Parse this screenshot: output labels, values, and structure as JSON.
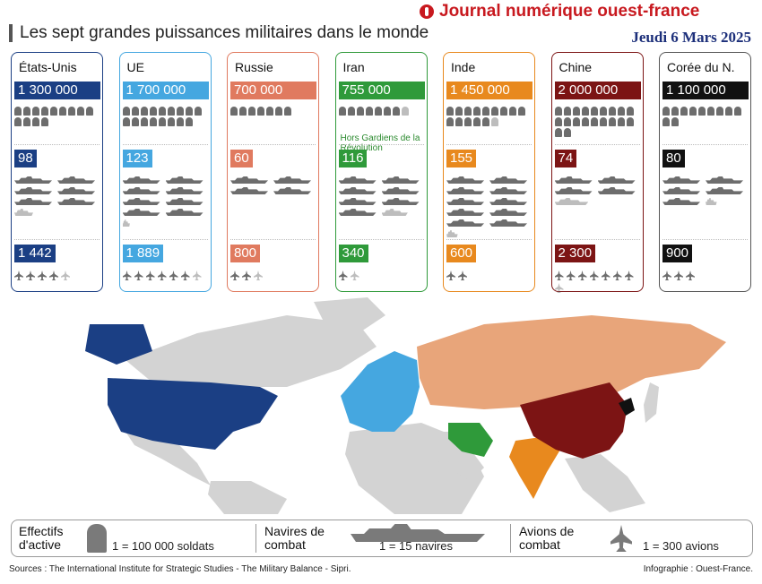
{
  "header": {
    "brand": "Journal numérique ouest-france",
    "date": "Jeudi 6 Mars 2025",
    "title": "Les sept grandes puissances militaires dans le monde"
  },
  "countries": [
    {
      "name": "États-Unis",
      "troops": "1 300 000",
      "ships": "98",
      "aircraft": "1 442",
      "color": "#1b3f84",
      "border": "#1b3f84",
      "soldier_icons": 13,
      "ship_icons": 6.5,
      "plane_icons": 4.8
    },
    {
      "name": "UE",
      "troops": "1 700 000",
      "ships": "123",
      "aircraft": "1 889",
      "color": "#45a7e0",
      "border": "#45a7e0",
      "soldier_icons": 17,
      "ship_icons": 8.2,
      "plane_icons": 6.3
    },
    {
      "name": "Russie",
      "troops": "700 000",
      "ships": "60",
      "aircraft": "800",
      "color": "#e07a5f",
      "border": "#e07a5f",
      "soldier_icons": 7,
      "ship_icons": 4,
      "plane_icons": 2.7
    },
    {
      "name": "Iran",
      "troops": "755 000",
      "ships": "116",
      "aircraft": "340",
      "color": "#2f9a3a",
      "border": "#2f9a3a",
      "soldier_icons": 7.5,
      "ship_icons": 7.7,
      "plane_icons": 1.1,
      "note": "Hors Gardiens de la Révolution"
    },
    {
      "name": "Inde",
      "troops": "1 450 000",
      "ships": "155",
      "aircraft": "600",
      "color": "#e8891e",
      "border": "#e8891e",
      "soldier_icons": 14.5,
      "ship_icons": 10.3,
      "plane_icons": 2
    },
    {
      "name": "Chine",
      "troops": "2 000 000",
      "ships": "74",
      "aircraft": "2 300",
      "color": "#7c1414",
      "border": "#7c1414",
      "soldier_icons": 20,
      "ship_icons": 4.9,
      "plane_icons": 7.7
    },
    {
      "name": "Corée du N.",
      "troops": "1 100 000",
      "ships": "80",
      "aircraft": "900",
      "color": "#111111",
      "border": "#555555",
      "soldier_icons": 11,
      "ship_icons": 5.3,
      "plane_icons": 3
    }
  ],
  "legend": {
    "troops_label": "Effectifs d'active",
    "troops_unit": "1 = 100 000 soldats",
    "ships_label": "Navires de combat",
    "ships_unit": "1 = 15 navires",
    "planes_label": "Avions de combat",
    "planes_unit": "1 = 300 avions"
  },
  "footer": {
    "sources": "Sources : The International Institute for Strategic Studies - The Military Balance - Sipri.",
    "credit": "Infographie : Ouest-France."
  },
  "map_colors": {
    "land": "#d3d3d3",
    "usa": "#1b3f84",
    "eu": "#45a7e0",
    "russia": "#e8a57a",
    "iran": "#2f9a3a",
    "india": "#e8891e",
    "china": "#7c1414",
    "north_korea": "#111111"
  }
}
